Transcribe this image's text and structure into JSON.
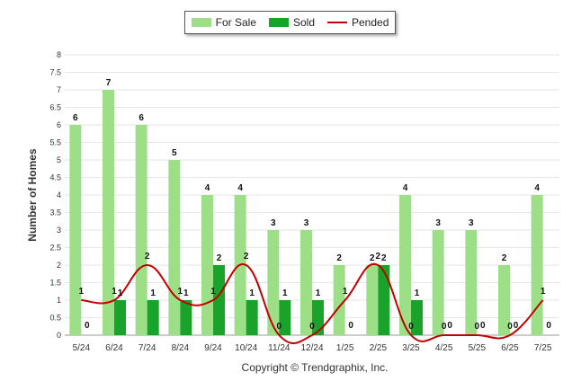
{
  "chart_data": {
    "type": "bar",
    "title": "",
    "xlabel": "",
    "ylabel": "Number of Homes",
    "categories": [
      "5/24",
      "6/24",
      "7/24",
      "8/24",
      "9/24",
      "10/24",
      "11/24",
      "12/24",
      "1/25",
      "2/25",
      "3/25",
      "4/25",
      "5/25",
      "6/25",
      "7/25"
    ],
    "yticks": [
      "0",
      "0.5",
      "1",
      "1.5",
      "2",
      "2.5",
      "3",
      "3.5",
      "4",
      "4.5",
      "5",
      "5.5",
      "6",
      "6.5",
      "7",
      "7.5",
      "8"
    ],
    "ylim": [
      0,
      8
    ],
    "grid": true,
    "legend_position": "top-center",
    "series": [
      {
        "name": "For Sale",
        "type": "bar",
        "color": "#9ddf86",
        "values": [
          6,
          7,
          6,
          5,
          4,
          4,
          3,
          3,
          2,
          2,
          4,
          3,
          3,
          2,
          4
        ]
      },
      {
        "name": "Sold",
        "type": "bar",
        "color": "#1aa32a",
        "values": [
          0,
          1,
          1,
          1,
          2,
          1,
          1,
          1,
          0,
          2,
          1,
          0,
          0,
          0,
          0
        ]
      },
      {
        "name": "Pended",
        "type": "line",
        "color": "#c00000",
        "values": [
          1,
          1,
          2,
          1,
          1,
          2,
          0,
          0,
          1,
          2,
          0,
          0,
          0,
          0,
          1
        ]
      }
    ]
  },
  "legend": {
    "for_sale": "For Sale",
    "sold": "Sold",
    "pended": "Pended"
  },
  "footer": {
    "copyright": "Copyright © Trendgraphix, Inc."
  }
}
